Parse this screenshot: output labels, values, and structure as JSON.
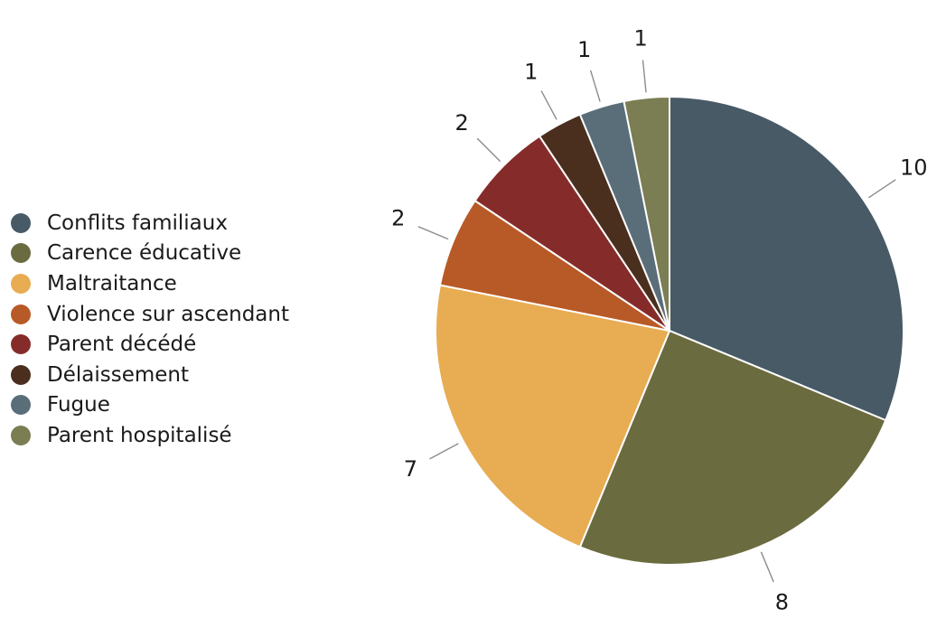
{
  "chart_data": {
    "type": "pie",
    "categories": [
      "Conflits familiaux",
      "Carence éducative",
      "Maltraitance",
      "Violence sur ascendant",
      "Parent décédé",
      "Délaissement",
      "Fugue",
      "Parent hospitalisé"
    ],
    "values": [
      10,
      8,
      7,
      2,
      2,
      1,
      1,
      1
    ],
    "data_labels": [
      "10",
      "8",
      "7",
      "2",
      "2",
      "1",
      "1",
      "1"
    ],
    "colors": [
      "#475a66",
      "#6b6b40",
      "#e8ac52",
      "#b85a27",
      "#852c2a",
      "#4a2e1e",
      "#5a6e7a",
      "#7b7d52"
    ],
    "legend_position": "left",
    "start_angle": "12 o'clock",
    "direction": "clockwise"
  }
}
